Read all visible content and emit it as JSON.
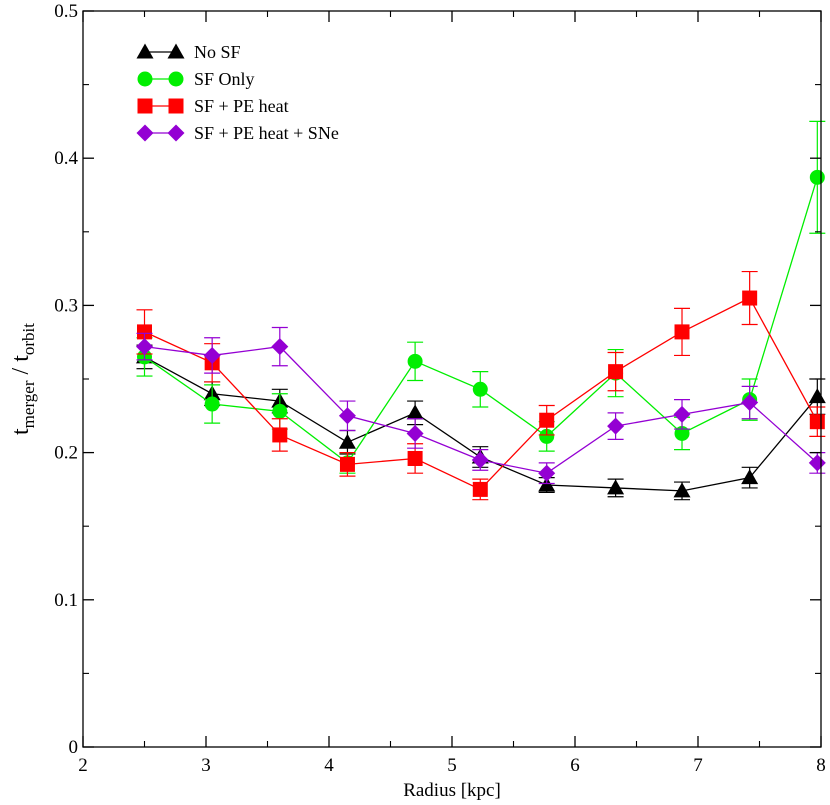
{
  "chart_data": {
    "type": "line",
    "title": "",
    "xlabel": "Radius [kpc]",
    "ylabel": {
      "base": "t",
      "sub1": "merger",
      "sep": " / ",
      "sub2": "orbit"
    },
    "xlim": [
      2,
      8
    ],
    "ylim": [
      0,
      0.5
    ],
    "xticks": [
      2,
      3,
      4,
      5,
      6,
      7,
      8
    ],
    "yticks": [
      0,
      0.1,
      0.2,
      0.3,
      0.4,
      0.5
    ],
    "xtick_labels": [
      "2",
      "3",
      "4",
      "5",
      "6",
      "7",
      "8"
    ],
    "ytick_labels": [
      "0",
      "0.1",
      "0.2",
      "0.3",
      "0.4",
      "0.5"
    ],
    "legend_position": "top-left",
    "x": [
      2.5,
      3.05,
      3.6,
      4.15,
      4.7,
      5.23,
      5.77,
      6.33,
      6.87,
      7.42,
      7.97
    ],
    "series": [
      {
        "name": "No SF",
        "color": "#000000",
        "marker": "triangle",
        "values": [
          0.265,
          0.24,
          0.235,
          0.207,
          0.227,
          0.197,
          0.178,
          0.176,
          0.174,
          0.183,
          0.238
        ],
        "errors": [
          0.008,
          0.008,
          0.008,
          0.008,
          0.008,
          0.007,
          0.005,
          0.006,
          0.006,
          0.007,
          0.012
        ]
      },
      {
        "name": "SF Only",
        "color": "#00ee00",
        "marker": "circle",
        "values": [
          0.265,
          0.233,
          0.228,
          0.193,
          0.262,
          0.243,
          0.211,
          0.254,
          0.213,
          0.236,
          0.387
        ],
        "errors": [
          0.013,
          0.013,
          0.012,
          0.007,
          0.013,
          0.012,
          0.01,
          0.016,
          0.011,
          0.014,
          0.038
        ]
      },
      {
        "name": "SF + PE heat",
        "color": "#ff0000",
        "marker": "square",
        "values": [
          0.282,
          0.261,
          0.212,
          0.192,
          0.196,
          0.175,
          0.222,
          0.255,
          0.282,
          0.305,
          0.221
        ],
        "errors": [
          0.015,
          0.013,
          0.011,
          0.008,
          0.01,
          0.007,
          0.01,
          0.013,
          0.016,
          0.018,
          0.01
        ]
      },
      {
        "name": "SF + PE heat + SNe",
        "color": "#9400d3",
        "marker": "diamond",
        "values": [
          0.272,
          0.266,
          0.272,
          0.225,
          0.213,
          0.195,
          0.186,
          0.218,
          0.226,
          0.234,
          0.193
        ],
        "errors": [
          0.009,
          0.012,
          0.013,
          0.01,
          0.01,
          0.007,
          0.007,
          0.009,
          0.01,
          0.011,
          0.007
        ]
      }
    ]
  }
}
